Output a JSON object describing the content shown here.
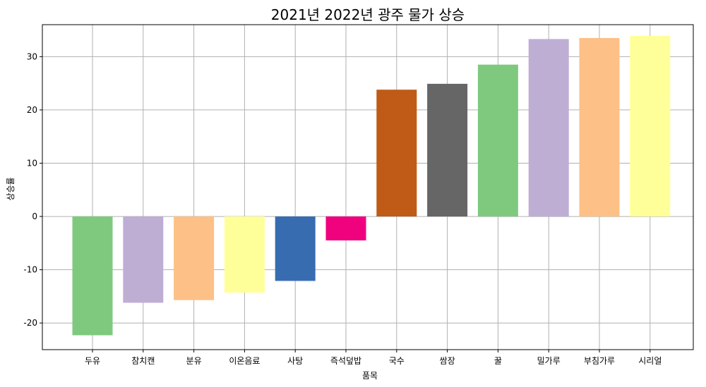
{
  "chart_data": {
    "type": "bar",
    "title": "2021년 2022년 광주 물가 상승",
    "xlabel": "품목",
    "ylabel": "상승률",
    "ylim": [
      -25,
      36
    ],
    "yticks": [
      -20,
      -10,
      0,
      10,
      20,
      30
    ],
    "grid": true,
    "categories": [
      "두유",
      "참치캔",
      "분유",
      "이온음료",
      "사탕",
      "즉석덮밥",
      "국수",
      "쌈장",
      "꿀",
      "밀가루",
      "부침가루",
      "시리얼"
    ],
    "values": [
      -22.3,
      -16.2,
      -15.7,
      -14.3,
      -12.1,
      -4.5,
      23.8,
      24.9,
      28.5,
      33.3,
      33.5,
      33.9
    ],
    "colors": [
      "#7fc97f",
      "#beaed4",
      "#fdc086",
      "#ffff99",
      "#386cb0",
      "#f0027f",
      "#bf5b17",
      "#666666",
      "#7fc97f",
      "#beaed4",
      "#fdc086",
      "#ffff99"
    ]
  }
}
